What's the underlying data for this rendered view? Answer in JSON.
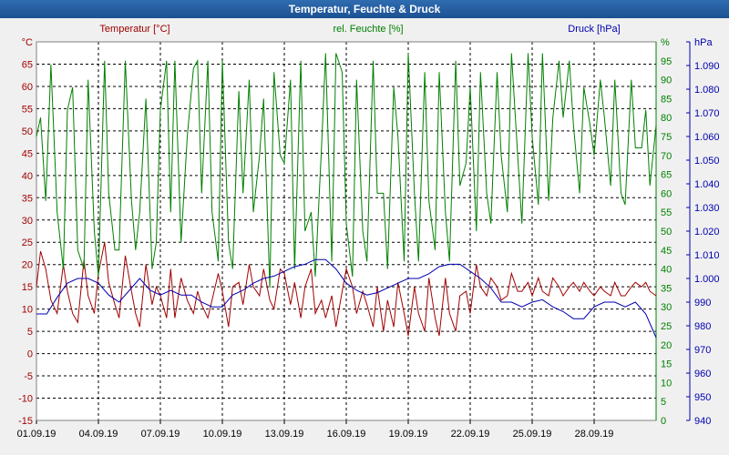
{
  "window": {
    "title": "Temperatur, Feuchte & Druck"
  },
  "chart_data": {
    "type": "line",
    "title": "Temperatur, Feuchte & Druck",
    "grid": true,
    "x_range": [
      "01.09.19",
      "30.09.19"
    ],
    "x_ticks": [
      "01.09.19",
      "04.09.19",
      "07.09.19",
      "10.09.19",
      "13.09.19",
      "16.09.19",
      "19.09.19",
      "22.09.19",
      "25.09.19",
      "28.09.19"
    ],
    "axes": {
      "temperature": {
        "unit": "°C",
        "label": "Temperatur [°C]",
        "ylim": [
          -15,
          70
        ],
        "ticks": [
          -15,
          -10,
          -5,
          0,
          5,
          10,
          15,
          20,
          25,
          30,
          35,
          40,
          45,
          50,
          55,
          60,
          65,
          70
        ],
        "tick_labels": [
          "-15",
          "-10",
          "-5",
          "0",
          "5",
          "10",
          "15",
          "20",
          "25",
          "30",
          "35",
          "40",
          "45",
          "50",
          "55",
          "60",
          "65",
          "°C"
        ],
        "color": "#a00000"
      },
      "humidity": {
        "unit": "%",
        "label": "rel. Feuchte [%]",
        "ylim": [
          0,
          100
        ],
        "ticks": [
          0,
          5,
          10,
          15,
          20,
          25,
          30,
          35,
          40,
          45,
          50,
          55,
          60,
          65,
          70,
          75,
          80,
          85,
          90,
          95,
          100
        ],
        "tick_labels": [
          "0",
          "5",
          "10",
          "15",
          "20",
          "25",
          "30",
          "35",
          "40",
          "45",
          "50",
          "55",
          "60",
          "65",
          "70",
          "75",
          "80",
          "85",
          "90",
          "95",
          "%"
        ],
        "color": "#008000"
      },
      "pressure": {
        "unit": "hPa",
        "label": "Druck [hPa]",
        "ylim": [
          940,
          1100
        ],
        "ticks": [
          940,
          950,
          960,
          970,
          980,
          990,
          1000,
          1010,
          1020,
          1030,
          1040,
          1050,
          1060,
          1070,
          1080,
          1090,
          1100
        ],
        "tick_labels": [
          "940",
          "950",
          "960",
          "970",
          "980",
          "990",
          "1.000",
          "1.010",
          "1.020",
          "1.030",
          "1.040",
          "1.050",
          "1.060",
          "1.070",
          "1.080",
          "1.090",
          "hPa"
        ],
        "color": "#0000b0"
      }
    },
    "series": [
      {
        "name": "Temperatur [°C]",
        "axis": "temperature",
        "x_days": [
          0,
          0.2,
          0.45,
          0.7,
          1.0,
          1.3,
          1.5,
          1.75,
          2.0,
          2.3,
          2.5,
          2.8,
          3.0,
          3.3,
          3.5,
          3.8,
          4.0,
          4.3,
          4.6,
          4.8,
          5.0,
          5.3,
          5.6,
          5.8,
          6.0,
          6.3,
          6.5,
          6.7,
          7.0,
          7.3,
          7.6,
          7.8,
          8.0,
          8.3,
          8.5,
          8.8,
          9.0,
          9.3,
          9.5,
          9.8,
          10.0,
          10.3,
          10.5,
          10.8,
          11.0,
          11.3,
          11.5,
          11.8,
          12.0,
          12.3,
          12.5,
          12.8,
          13.0,
          13.3,
          13.5,
          13.8,
          14.0,
          14.3,
          14.5,
          14.8,
          15.0,
          15.3,
          15.5,
          15.8,
          16.0,
          16.3,
          16.5,
          16.8,
          17.0,
          17.3,
          17.5,
          17.8,
          18.0,
          18.3,
          18.5,
          18.8,
          19.0,
          19.3,
          19.5,
          19.8,
          20.0,
          20.3,
          20.5,
          20.8,
          21.0,
          21.3,
          21.5,
          21.8,
          22.0,
          22.3,
          22.5,
          22.8,
          23.0,
          23.3,
          23.5,
          23.8,
          24.0,
          24.3,
          24.5,
          24.8,
          25.0,
          25.3,
          25.5,
          25.8,
          26.0,
          26.3,
          26.5,
          26.8,
          27.0,
          27.3,
          27.5,
          27.8,
          28.0,
          28.3,
          28.5,
          28.8,
          29.0,
          29.3,
          29.5,
          29.7,
          30.0
        ],
        "values": [
          15,
          23,
          19,
          12,
          9,
          20,
          14,
          9,
          7,
          21,
          13,
          9,
          18,
          25,
          16,
          11,
          8,
          22,
          14,
          9,
          6,
          20,
          11,
          15,
          13,
          8,
          19,
          8,
          17,
          12,
          9,
          14,
          11,
          8,
          12,
          18,
          14,
          6,
          15,
          16,
          11,
          20,
          15,
          13,
          19,
          12,
          10,
          19,
          18,
          11,
          16,
          8,
          15,
          19,
          9,
          12,
          8,
          13,
          6,
          14,
          19,
          15,
          9,
          14,
          11,
          6,
          15,
          5,
          12,
          6,
          16,
          9,
          4,
          15,
          9,
          5,
          17,
          8,
          4,
          17,
          9,
          5,
          13,
          14,
          9,
          20,
          15,
          13,
          17,
          15,
          12,
          13,
          18,
          14,
          14,
          16,
          13,
          17,
          14,
          13,
          17,
          15,
          13,
          15,
          16,
          14,
          16,
          14,
          13,
          15,
          14,
          13,
          16,
          13,
          13,
          15,
          16,
          15,
          16,
          14,
          13
        ]
      },
      {
        "name": "rel. Feuchte [%]",
        "axis": "humidity",
        "x_days": [
          0,
          0.2,
          0.45,
          0.7,
          1.0,
          1.3,
          1.5,
          1.75,
          2.0,
          2.3,
          2.5,
          2.8,
          3.0,
          3.3,
          3.5,
          3.8,
          4.0,
          4.3,
          4.6,
          4.8,
          5.0,
          5.3,
          5.6,
          5.8,
          6.0,
          6.3,
          6.5,
          6.7,
          7.0,
          7.3,
          7.6,
          7.8,
          8.0,
          8.3,
          8.5,
          8.8,
          9.0,
          9.3,
          9.5,
          9.8,
          10.0,
          10.3,
          10.5,
          10.8,
          11.0,
          11.3,
          11.5,
          11.8,
          12.0,
          12.3,
          12.5,
          12.8,
          13.0,
          13.3,
          13.5,
          13.8,
          14.0,
          14.3,
          14.5,
          14.8,
          15.0,
          15.3,
          15.5,
          15.8,
          16.0,
          16.3,
          16.5,
          16.8,
          17.0,
          17.3,
          17.5,
          17.8,
          18.0,
          18.3,
          18.5,
          18.8,
          19.0,
          19.3,
          19.5,
          19.8,
          20.0,
          20.3,
          20.5,
          20.8,
          21.0,
          21.3,
          21.5,
          21.8,
          22.0,
          22.3,
          22.5,
          22.8,
          23.0,
          23.3,
          23.5,
          23.8,
          24.0,
          24.3,
          24.5,
          24.8,
          25.0,
          25.3,
          25.5,
          25.8,
          26.0,
          26.3,
          26.5,
          26.8,
          27.0,
          27.3,
          27.5,
          27.8,
          28.0,
          28.3,
          28.5,
          28.8,
          29.0,
          29.3,
          29.5,
          29.7,
          30.0
        ],
        "values": [
          75,
          80,
          58,
          94,
          55,
          40,
          82,
          88,
          45,
          40,
          90,
          50,
          38,
          95,
          60,
          45,
          45,
          95,
          58,
          45,
          55,
          85,
          40,
          47,
          82,
          95,
          55,
          95,
          47,
          75,
          93,
          95,
          60,
          95,
          55,
          42,
          95,
          47,
          40,
          87,
          60,
          90,
          55,
          70,
          85,
          35,
          92,
          70,
          68,
          90,
          40,
          95,
          50,
          55,
          38,
          72,
          97,
          42,
          97,
          92,
          52,
          38,
          90,
          50,
          42,
          95,
          60,
          60,
          40,
          88,
          75,
          42,
          97,
          60,
          42,
          92,
          58,
          45,
          92,
          55,
          42,
          95,
          62,
          68,
          88,
          50,
          92,
          60,
          52,
          92,
          70,
          55,
          97,
          70,
          52,
          97,
          75,
          57,
          97,
          58,
          80,
          95,
          80,
          95,
          78,
          60,
          88,
          78,
          70,
          90,
          80,
          62,
          90,
          60,
          57,
          90,
          72,
          72,
          82,
          62,
          78
        ]
      },
      {
        "name": "Druck [hPa]",
        "axis": "pressure",
        "x_days": [
          0,
          0.5,
          1.0,
          1.5,
          2.0,
          2.5,
          3.0,
          3.5,
          4.0,
          4.5,
          5.0,
          5.5,
          6.0,
          6.5,
          7.0,
          7.5,
          8.0,
          8.5,
          9.0,
          9.5,
          10.0,
          10.5,
          11.0,
          11.5,
          12.0,
          12.5,
          13.0,
          13.5,
          14.0,
          14.5,
          15.0,
          15.5,
          16.0,
          16.5,
          17.0,
          17.5,
          18.0,
          18.5,
          19.0,
          19.5,
          20.0,
          20.5,
          21.0,
          21.5,
          22.0,
          22.5,
          23.0,
          23.5,
          24.0,
          24.5,
          25.0,
          25.5,
          26.0,
          26.5,
          27.0,
          27.5,
          28.0,
          28.5,
          29.0,
          29.5,
          30.0
        ],
        "values": [
          985,
          985,
          992,
          998,
          1000,
          1000,
          998,
          993,
          990,
          995,
          1000,
          995,
          993,
          995,
          993,
          993,
          990,
          988,
          988,
          993,
          995,
          998,
          1000,
          1001,
          1003,
          1005,
          1006,
          1008,
          1008,
          1004,
          998,
          995,
          993,
          994,
          996,
          998,
          1000,
          1000,
          1002,
          1005,
          1006,
          1006,
          1003,
          1000,
          996,
          990,
          990,
          988,
          990,
          991,
          988,
          986,
          983,
          983,
          988,
          990,
          990,
          988,
          990,
          985,
          975
        ]
      }
    ]
  }
}
